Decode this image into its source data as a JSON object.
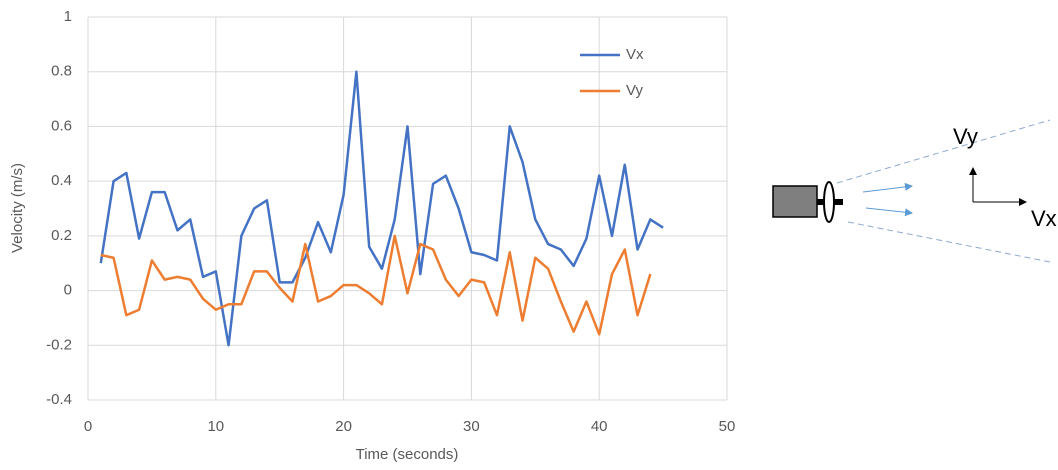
{
  "chart_data": {
    "type": "line",
    "x_label": "Time (seconds)",
    "y_label": "Velocity (m/s)",
    "x": [
      1,
      2,
      3,
      4,
      5,
      6,
      7,
      8,
      9,
      10,
      11,
      12,
      13,
      14,
      15,
      16,
      17,
      18,
      19,
      20,
      21,
      22,
      23,
      24,
      25,
      26,
      27,
      28,
      29,
      30,
      31,
      32,
      33,
      34,
      35,
      36,
      37,
      38,
      39,
      40,
      41,
      42,
      43,
      44,
      45
    ],
    "series": [
      {
        "name": "Vx",
        "color": "#4472c4",
        "values": [
          0.1,
          0.4,
          0.43,
          0.19,
          0.36,
          0.36,
          0.22,
          0.26,
          0.05,
          0.07,
          -0.2,
          0.2,
          0.3,
          0.33,
          0.03,
          0.03,
          0.12,
          0.25,
          0.14,
          0.35,
          0.8,
          0.16,
          0.08,
          0.26,
          0.6,
          0.06,
          0.39,
          0.42,
          0.3,
          0.14,
          0.13,
          0.11,
          0.6,
          0.47,
          0.26,
          0.17,
          0.15,
          0.09,
          0.19,
          0.42,
          0.2,
          0.46,
          0.15,
          0.26,
          0.23
        ]
      },
      {
        "name": "Vy",
        "color": "#ed7d31",
        "values": [
          0.13,
          0.12,
          -0.09,
          -0.07,
          0.11,
          0.04,
          0.05,
          0.04,
          -0.03,
          -0.07,
          -0.05,
          -0.05,
          0.07,
          0.07,
          0.01,
          -0.04,
          0.17,
          -0.04,
          -0.02,
          0.02,
          0.02,
          -0.01,
          -0.05,
          0.2,
          -0.01,
          0.17,
          0.15,
          0.04,
          -0.02,
          0.04,
          0.03,
          -0.09,
          0.14,
          -0.11,
          0.12,
          0.08,
          -0.04,
          -0.15,
          -0.04,
          -0.16,
          0.06,
          0.15,
          -0.09,
          0.06,
          null
        ]
      }
    ],
    "xlim": [
      0,
      50
    ],
    "xticks": [
      0,
      10,
      20,
      30,
      40,
      50
    ],
    "ylim": [
      -0.4,
      1
    ],
    "yticks": [
      -0.4,
      -0.2,
      0,
      0.2,
      0.4,
      0.6,
      0.8,
      1
    ],
    "grid": true,
    "legend": "top-right"
  },
  "diagram": {
    "labels": [
      "Vy",
      "Vx"
    ]
  }
}
